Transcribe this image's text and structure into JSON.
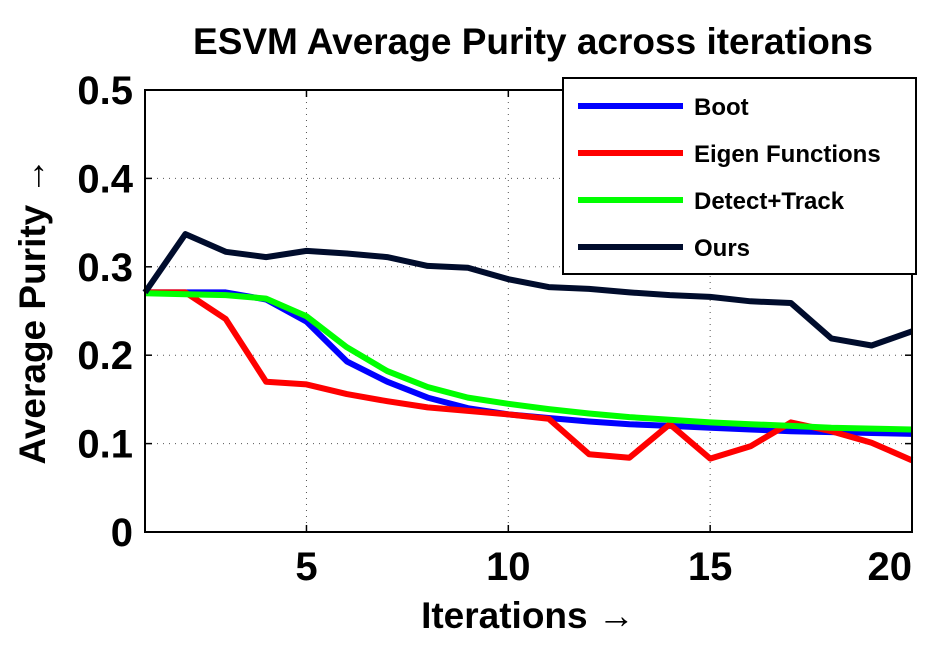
{
  "chart_data": {
    "type": "line",
    "title": "ESVM Average Purity across iterations",
    "xlabel": "Iterations →",
    "ylabel": "Average Purity →",
    "xlim": [
      1,
      20
    ],
    "ylim": [
      0,
      0.5
    ],
    "xticks": [
      5,
      10,
      15,
      20
    ],
    "xtick_labels": [
      "5",
      "10",
      "15",
      "20"
    ],
    "yticks": [
      0,
      0.1,
      0.2,
      0.3,
      0.4,
      0.5
    ],
    "ytick_labels": [
      "0",
      "0.1",
      "0.2",
      "0.3",
      "0.4",
      "0.5"
    ],
    "grid": true,
    "legend_position": "top-right",
    "x": [
      1,
      2,
      3,
      4,
      5,
      6,
      7,
      8,
      9,
      10,
      11,
      12,
      13,
      14,
      15,
      16,
      17,
      18,
      19,
      20
    ],
    "series": [
      {
        "name": "Boot",
        "color": "#0000ff",
        "values": [
          0.271,
          0.271,
          0.271,
          0.263,
          0.238,
          0.193,
          0.17,
          0.152,
          0.14,
          0.133,
          0.129,
          0.125,
          0.122,
          0.12,
          0.118,
          0.116,
          0.114,
          0.113,
          0.112,
          0.111
        ]
      },
      {
        "name": "Eigen Functions",
        "color": "#ff0000",
        "values": [
          0.271,
          0.271,
          0.241,
          0.17,
          0.167,
          0.156,
          0.148,
          0.141,
          0.137,
          0.133,
          0.128,
          0.088,
          0.084,
          0.122,
          0.083,
          0.097,
          0.124,
          0.114,
          0.101,
          0.081
        ]
      },
      {
        "name": "Detect+Track",
        "color": "#00ff00",
        "values": [
          0.27,
          0.269,
          0.268,
          0.264,
          0.244,
          0.209,
          0.182,
          0.164,
          0.152,
          0.145,
          0.139,
          0.134,
          0.13,
          0.127,
          0.124,
          0.122,
          0.12,
          0.118,
          0.117,
          0.116
        ]
      },
      {
        "name": "Ours",
        "color": "#000c2c",
        "values": [
          0.271,
          0.337,
          0.317,
          0.311,
          0.318,
          0.315,
          0.311,
          0.301,
          0.299,
          0.286,
          0.277,
          0.275,
          0.271,
          0.268,
          0.266,
          0.261,
          0.259,
          0.219,
          0.211,
          0.227
        ]
      }
    ]
  }
}
